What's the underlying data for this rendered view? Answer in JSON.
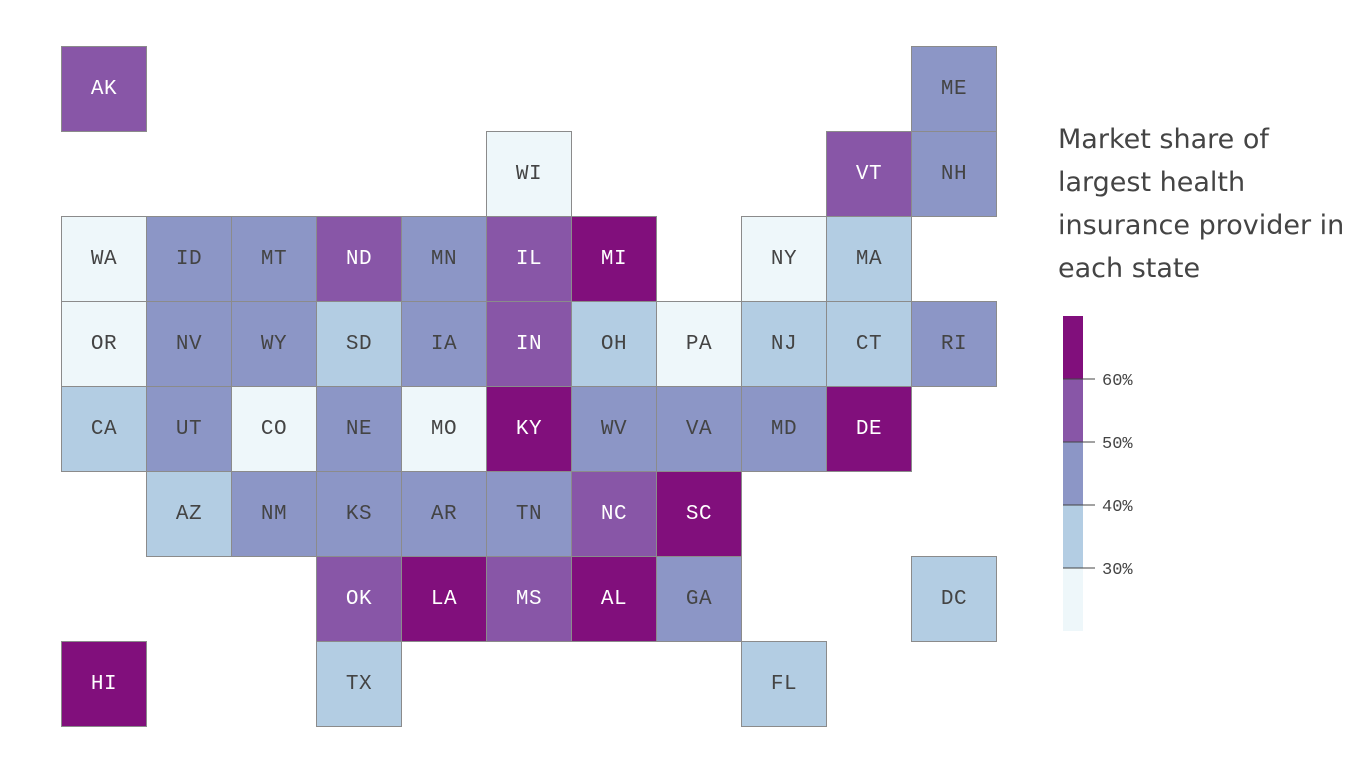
{
  "title": "Market share of largest health insurance provider in each state",
  "legend": {
    "bins": [
      {
        "range": "<30%",
        "color": "#eef7fa"
      },
      {
        "range": "30-40%",
        "color": "#b3cde3"
      },
      {
        "range": "40-50%",
        "color": "#8c96c6"
      },
      {
        "range": "50-60%",
        "color": "#8856a7"
      },
      {
        "range": ">60%",
        "color": "#810f7c"
      }
    ],
    "ticks": [
      "30%",
      "40%",
      "50%",
      "60%"
    ]
  },
  "states": [
    {
      "abbr": "AK",
      "bin": 3,
      "col": 0,
      "row": 0
    },
    {
      "abbr": "ME",
      "bin": 2,
      "col": 10,
      "row": 0
    },
    {
      "abbr": "WI",
      "bin": 0,
      "col": 5,
      "row": 1
    },
    {
      "abbr": "VT",
      "bin": 3,
      "col": 9,
      "row": 1
    },
    {
      "abbr": "NH",
      "bin": 2,
      "col": 10,
      "row": 1
    },
    {
      "abbr": "WA",
      "bin": 0,
      "col": 0,
      "row": 2
    },
    {
      "abbr": "ID",
      "bin": 2,
      "col": 1,
      "row": 2
    },
    {
      "abbr": "MT",
      "bin": 2,
      "col": 2,
      "row": 2
    },
    {
      "abbr": "ND",
      "bin": 3,
      "col": 3,
      "row": 2
    },
    {
      "abbr": "MN",
      "bin": 2,
      "col": 4,
      "row": 2
    },
    {
      "abbr": "IL",
      "bin": 3,
      "col": 5,
      "row": 2
    },
    {
      "abbr": "MI",
      "bin": 4,
      "col": 6,
      "row": 2
    },
    {
      "abbr": "NY",
      "bin": 0,
      "col": 8,
      "row": 2
    },
    {
      "abbr": "MA",
      "bin": 1,
      "col": 9,
      "row": 2
    },
    {
      "abbr": "OR",
      "bin": 0,
      "col": 0,
      "row": 3
    },
    {
      "abbr": "NV",
      "bin": 2,
      "col": 1,
      "row": 3
    },
    {
      "abbr": "WY",
      "bin": 2,
      "col": 2,
      "row": 3
    },
    {
      "abbr": "SD",
      "bin": 1,
      "col": 3,
      "row": 3
    },
    {
      "abbr": "IA",
      "bin": 2,
      "col": 4,
      "row": 3
    },
    {
      "abbr": "IN",
      "bin": 3,
      "col": 5,
      "row": 3
    },
    {
      "abbr": "OH",
      "bin": 1,
      "col": 6,
      "row": 3
    },
    {
      "abbr": "PA",
      "bin": 0,
      "col": 7,
      "row": 3
    },
    {
      "abbr": "NJ",
      "bin": 1,
      "col": 8,
      "row": 3
    },
    {
      "abbr": "CT",
      "bin": 1,
      "col": 9,
      "row": 3
    },
    {
      "abbr": "RI",
      "bin": 2,
      "col": 10,
      "row": 3
    },
    {
      "abbr": "CA",
      "bin": 1,
      "col": 0,
      "row": 4
    },
    {
      "abbr": "UT",
      "bin": 2,
      "col": 1,
      "row": 4
    },
    {
      "abbr": "CO",
      "bin": 0,
      "col": 2,
      "row": 4
    },
    {
      "abbr": "NE",
      "bin": 2,
      "col": 3,
      "row": 4
    },
    {
      "abbr": "MO",
      "bin": 0,
      "col": 4,
      "row": 4
    },
    {
      "abbr": "KY",
      "bin": 4,
      "col": 5,
      "row": 4
    },
    {
      "abbr": "WV",
      "bin": 2,
      "col": 6,
      "row": 4
    },
    {
      "abbr": "VA",
      "bin": 2,
      "col": 7,
      "row": 4
    },
    {
      "abbr": "MD",
      "bin": 2,
      "col": 8,
      "row": 4
    },
    {
      "abbr": "DE",
      "bin": 4,
      "col": 9,
      "row": 4
    },
    {
      "abbr": "AZ",
      "bin": 1,
      "col": 1,
      "row": 5
    },
    {
      "abbr": "NM",
      "bin": 2,
      "col": 2,
      "row": 5
    },
    {
      "abbr": "KS",
      "bin": 2,
      "col": 3,
      "row": 5
    },
    {
      "abbr": "AR",
      "bin": 2,
      "col": 4,
      "row": 5
    },
    {
      "abbr": "TN",
      "bin": 2,
      "col": 5,
      "row": 5
    },
    {
      "abbr": "NC",
      "bin": 3,
      "col": 6,
      "row": 5
    },
    {
      "abbr": "SC",
      "bin": 4,
      "col": 7,
      "row": 5
    },
    {
      "abbr": "OK",
      "bin": 3,
      "col": 3,
      "row": 6
    },
    {
      "abbr": "LA",
      "bin": 4,
      "col": 4,
      "row": 6
    },
    {
      "abbr": "MS",
      "bin": 3,
      "col": 5,
      "row": 6
    },
    {
      "abbr": "AL",
      "bin": 4,
      "col": 6,
      "row": 6
    },
    {
      "abbr": "GA",
      "bin": 2,
      "col": 7,
      "row": 6
    },
    {
      "abbr": "DC",
      "bin": 1,
      "col": 10,
      "row": 6
    },
    {
      "abbr": "HI",
      "bin": 4,
      "col": 0,
      "row": 7
    },
    {
      "abbr": "TX",
      "bin": 1,
      "col": 3,
      "row": 7
    },
    {
      "abbr": "FL",
      "bin": 1,
      "col": 8,
      "row": 7
    }
  ]
}
